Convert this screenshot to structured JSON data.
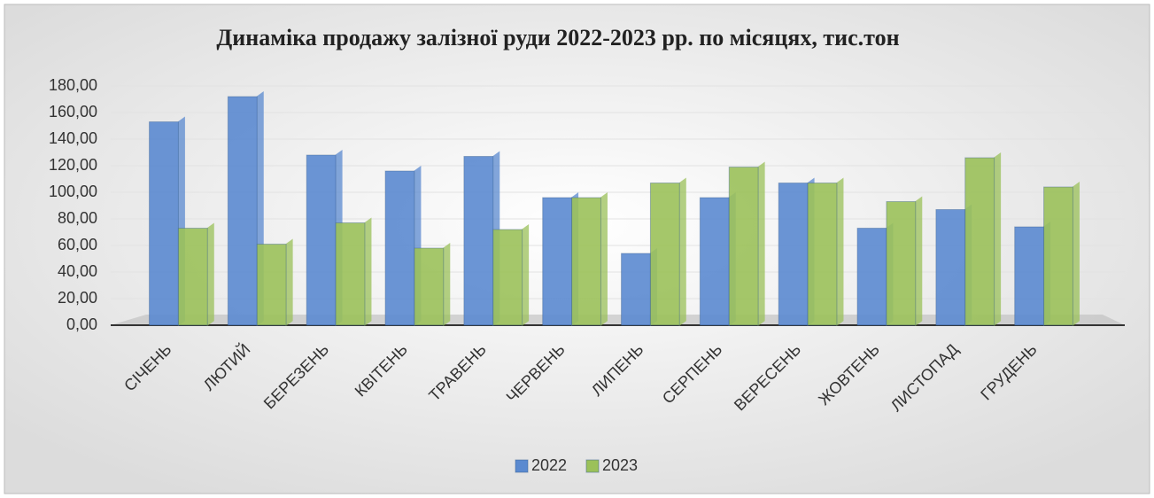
{
  "chart_data": {
    "type": "bar",
    "title": "Динаміка продажу залізної руди  2022-2023 рр. по місяцях, тис.тон",
    "categories": [
      "СІЧЕНЬ",
      "ЛЮТИЙ",
      "БЕРЕЗЕНЬ",
      "КВІТЕНЬ",
      "ТРАВЕНЬ",
      "ЧЕРВЕНЬ",
      "ЛИПЕНЬ",
      "СЕРПЕНЬ",
      "ВЕРЕСЕНЬ",
      "ЖОВТЕНЬ",
      "ЛИСТОПАД",
      "ГРУДЕНЬ"
    ],
    "series": [
      {
        "name": "2022",
        "color": "#5b8ad0",
        "values": [
          153,
          172,
          128,
          116,
          127,
          96,
          54,
          96,
          107,
          73,
          87,
          74
        ]
      },
      {
        "name": "2023",
        "color": "#9bc15a",
        "values": [
          73,
          61,
          77,
          58,
          72,
          96,
          107,
          119,
          107,
          93,
          126,
          104
        ]
      }
    ],
    "ylim": [
      0,
      180
    ],
    "yticks": [
      {
        "value": 0,
        "label": "0,00"
      },
      {
        "value": 20,
        "label": "20,00"
      },
      {
        "value": 40,
        "label": "40,00"
      },
      {
        "value": 60,
        "label": "60,00"
      },
      {
        "value": 80,
        "label": "80,00"
      },
      {
        "value": 100,
        "label": "100,00"
      },
      {
        "value": 120,
        "label": "120,00"
      },
      {
        "value": 140,
        "label": "140,00"
      },
      {
        "value": 160,
        "label": "160,00"
      },
      {
        "value": 180,
        "label": "180,00"
      }
    ],
    "grid": true,
    "legend": "bottom"
  }
}
